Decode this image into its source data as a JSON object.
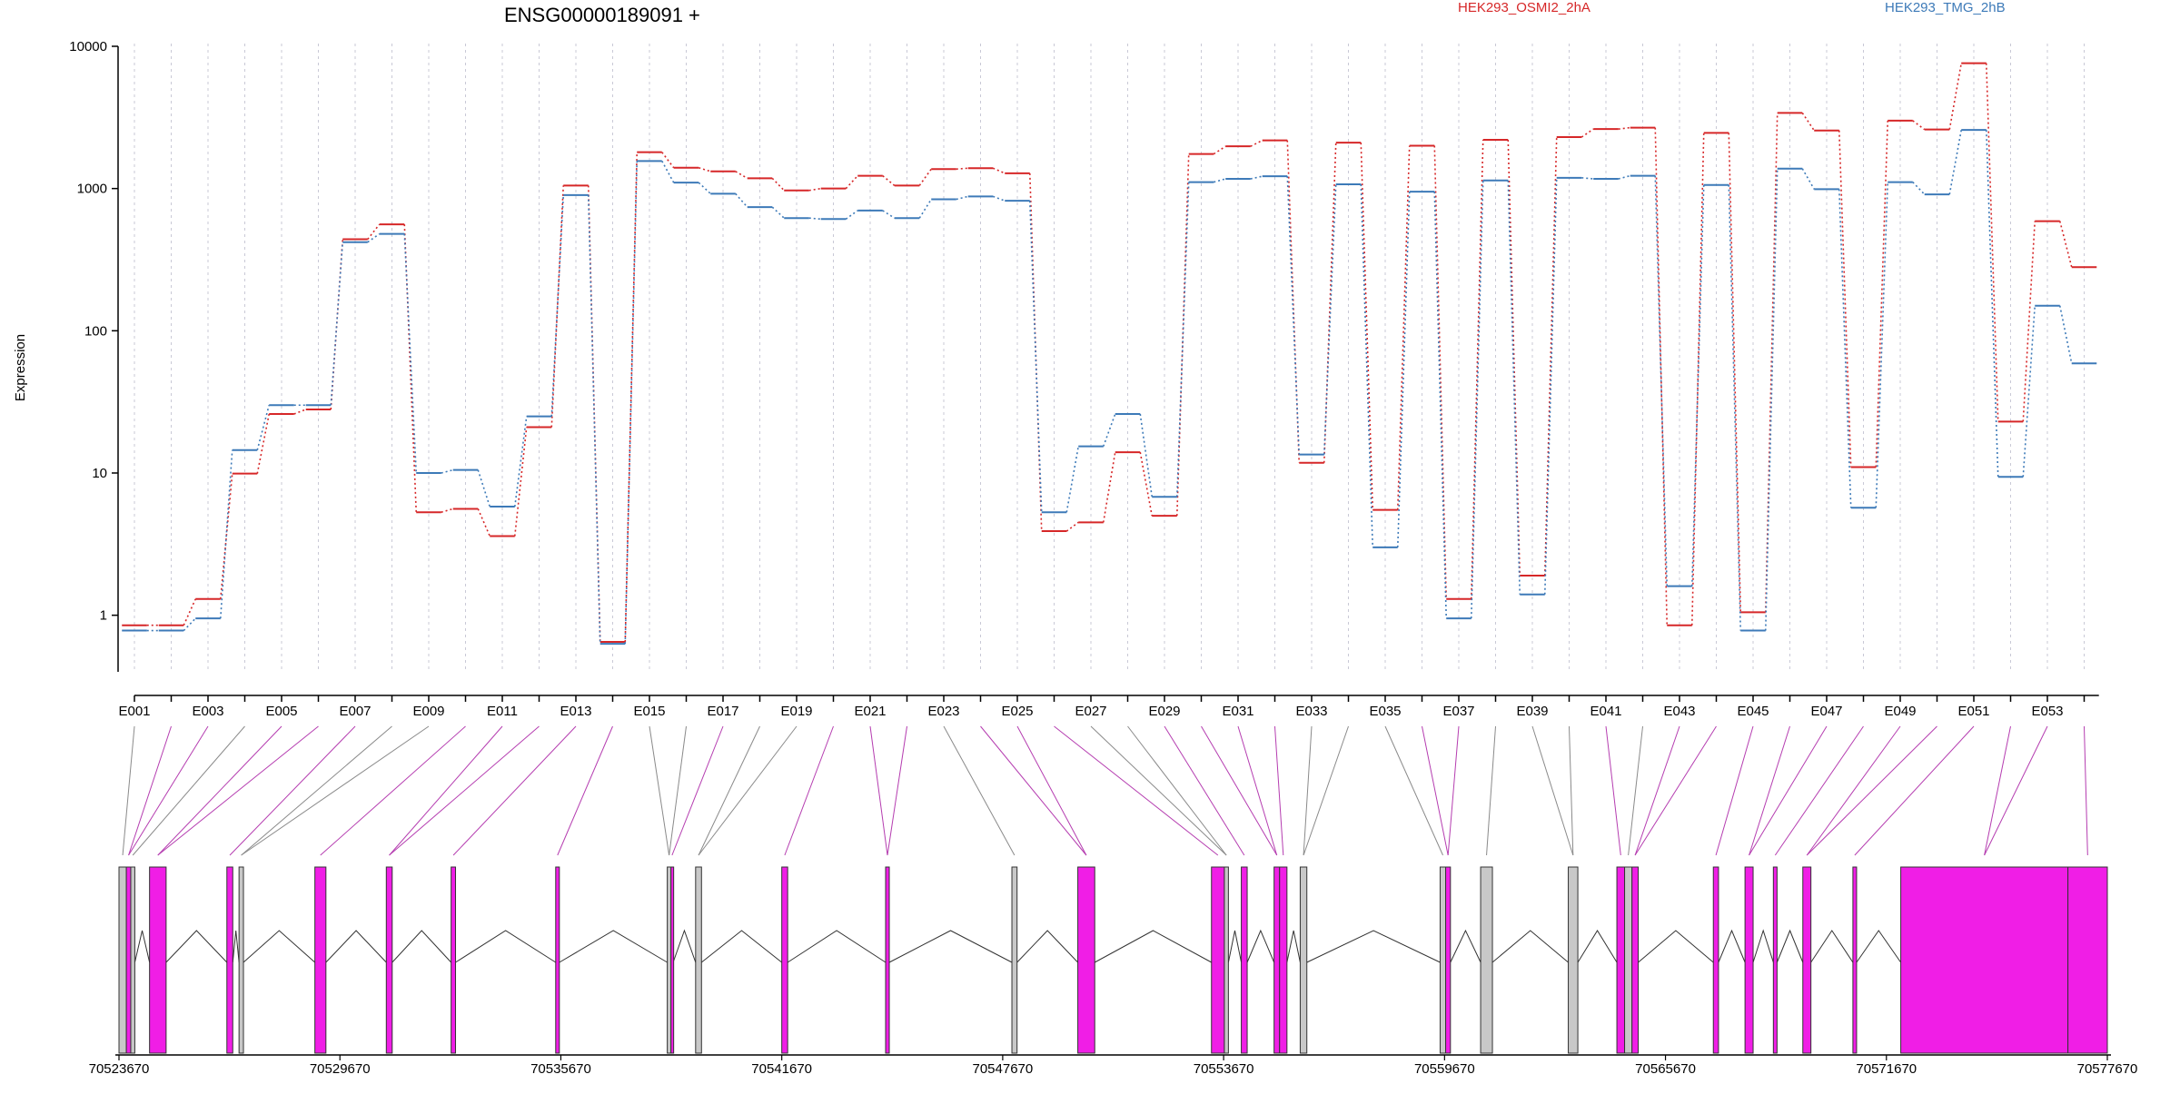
{
  "title": "ENSG00000189091 +",
  "legend": [
    {
      "name": "HEK293_OSMI2_2hA",
      "color": "#d62728"
    },
    {
      "name": "HEK293_TMG_2hB",
      "color": "#3d7ab8"
    }
  ],
  "chart_data": {
    "type": "line",
    "title": "ENSG00000189091 +",
    "ylabel": "Expression",
    "yscale": "log",
    "ylim": [
      0.4,
      10000
    ],
    "yticks": [
      1,
      10,
      100,
      1000,
      10000
    ],
    "ytick_labels": [
      "1",
      "10",
      "100",
      "1000",
      "10000"
    ],
    "legend_position": "top",
    "x": [
      "E001",
      "E002",
      "E003",
      "E004",
      "E005",
      "E006",
      "E007",
      "E008",
      "E009",
      "E010",
      "E011",
      "E012",
      "E013",
      "E014",
      "E015",
      "E016",
      "E017",
      "E018",
      "E019",
      "E020",
      "E021",
      "E022",
      "E023",
      "E024",
      "E025",
      "E026",
      "E027",
      "E028",
      "E029",
      "E030",
      "E031",
      "E032",
      "E033",
      "E034",
      "E035",
      "E036",
      "E037",
      "E038",
      "E039",
      "E040",
      "E041",
      "E042",
      "E043",
      "E044",
      "E045",
      "E046",
      "E047",
      "E048",
      "E049",
      "E050",
      "E051",
      "E052",
      "E053",
      "E054"
    ],
    "xtick_labels": [
      "E001",
      "E003",
      "E005",
      "E007",
      "E009",
      "E011",
      "E013",
      "E015",
      "E017",
      "E019",
      "E021",
      "E023",
      "E025",
      "E027",
      "E029",
      "E031",
      "E033",
      "E035",
      "E037",
      "E039",
      "E041",
      "E043",
      "E045",
      "E047",
      "E049",
      "E051",
      "E053"
    ],
    "series": [
      {
        "name": "HEK293_OSMI2_2hA",
        "color": "#d62728",
        "values": [
          0.85,
          0.85,
          1.3,
          9.9,
          26,
          28,
          440,
          560,
          5.3,
          5.6,
          3.6,
          21,
          1050,
          0.65,
          1800,
          1400,
          1320,
          1180,
          970,
          1000,
          1230,
          1050,
          1370,
          1390,
          1280,
          3.9,
          4.5,
          14,
          5.0,
          1750,
          1980,
          2180,
          11.8,
          2100,
          5.5,
          2000,
          1.3,
          2200,
          1.9,
          2300,
          2620,
          2680,
          0.85,
          2460,
          1.05,
          3400,
          2560,
          11,
          3000,
          2600,
          7600,
          23,
          590,
          280
        ]
      },
      {
        "name": "HEK293_TMG_2hB",
        "color": "#3d7ab8",
        "values": [
          0.78,
          0.78,
          0.95,
          14.5,
          30,
          30,
          420,
          480,
          10,
          10.5,
          5.8,
          25,
          900,
          0.63,
          1560,
          1100,
          920,
          740,
          620,
          610,
          700,
          620,
          840,
          880,
          820,
          5.3,
          15.4,
          26,
          6.8,
          1110,
          1170,
          1220,
          13.5,
          1070,
          3.0,
          950,
          0.95,
          1140,
          1.4,
          1190,
          1170,
          1230,
          1.6,
          1060,
          0.78,
          1380,
          990,
          5.7,
          1110,
          910,
          2580,
          9.4,
          150,
          59
        ]
      }
    ]
  },
  "gene_model": {
    "coord_labels": [
      "70523670",
      "70529670",
      "70535670",
      "70541670",
      "70547670",
      "70553670",
      "70559670",
      "70565670",
      "70571670",
      "70577670"
    ],
    "coord_start": 70523670,
    "coord_end": 70577670,
    "exons": [
      {
        "start": 70523670,
        "end": 70523870,
        "type": "gray"
      },
      {
        "start": 70523870,
        "end": 70523990,
        "type": "pink"
      },
      {
        "start": 70523990,
        "end": 70524100,
        "type": "gray"
      },
      {
        "start": 70524500,
        "end": 70524950,
        "type": "pink"
      },
      {
        "start": 70526600,
        "end": 70526760,
        "type": "pink"
      },
      {
        "start": 70526930,
        "end": 70527050,
        "type": "gray"
      },
      {
        "start": 70528990,
        "end": 70529290,
        "type": "pink"
      },
      {
        "start": 70530930,
        "end": 70531090,
        "type": "pink"
      },
      {
        "start": 70532690,
        "end": 70532810,
        "type": "pink"
      },
      {
        "start": 70535530,
        "end": 70535630,
        "type": "pink"
      },
      {
        "start": 70538560,
        "end": 70538660,
        "type": "gray"
      },
      {
        "start": 70538660,
        "end": 70538720,
        "type": "pink"
      },
      {
        "start": 70539330,
        "end": 70539490,
        "type": "gray"
      },
      {
        "start": 70541670,
        "end": 70541830,
        "type": "pink"
      },
      {
        "start": 70544490,
        "end": 70544590,
        "type": "pink"
      },
      {
        "start": 70547920,
        "end": 70548060,
        "type": "gray"
      },
      {
        "start": 70549710,
        "end": 70550170,
        "type": "pink"
      },
      {
        "start": 70553340,
        "end": 70553690,
        "type": "pink"
      },
      {
        "start": 70553690,
        "end": 70553800,
        "type": "gray"
      },
      {
        "start": 70554150,
        "end": 70554310,
        "type": "pink"
      },
      {
        "start": 70555040,
        "end": 70555190,
        "type": "pink"
      },
      {
        "start": 70555190,
        "end": 70555390,
        "type": "pink"
      },
      {
        "start": 70555750,
        "end": 70555930,
        "type": "gray"
      },
      {
        "start": 70559550,
        "end": 70559700,
        "type": "gray"
      },
      {
        "start": 70559700,
        "end": 70559830,
        "type": "pink"
      },
      {
        "start": 70560650,
        "end": 70560970,
        "type": "gray"
      },
      {
        "start": 70563030,
        "end": 70563290,
        "type": "gray"
      },
      {
        "start": 70564350,
        "end": 70564560,
        "type": "pink"
      },
      {
        "start": 70564560,
        "end": 70564760,
        "type": "gray"
      },
      {
        "start": 70564760,
        "end": 70564930,
        "type": "pink"
      },
      {
        "start": 70566970,
        "end": 70567110,
        "type": "pink"
      },
      {
        "start": 70567830,
        "end": 70568050,
        "type": "pink"
      },
      {
        "start": 70568600,
        "end": 70568700,
        "type": "pink"
      },
      {
        "start": 70569400,
        "end": 70569620,
        "type": "pink"
      },
      {
        "start": 70570760,
        "end": 70570860,
        "type": "pink"
      },
      {
        "start": 70572060,
        "end": 70576600,
        "type": "pink"
      },
      {
        "start": 70576600,
        "end": 70577670,
        "type": "pink"
      }
    ]
  }
}
